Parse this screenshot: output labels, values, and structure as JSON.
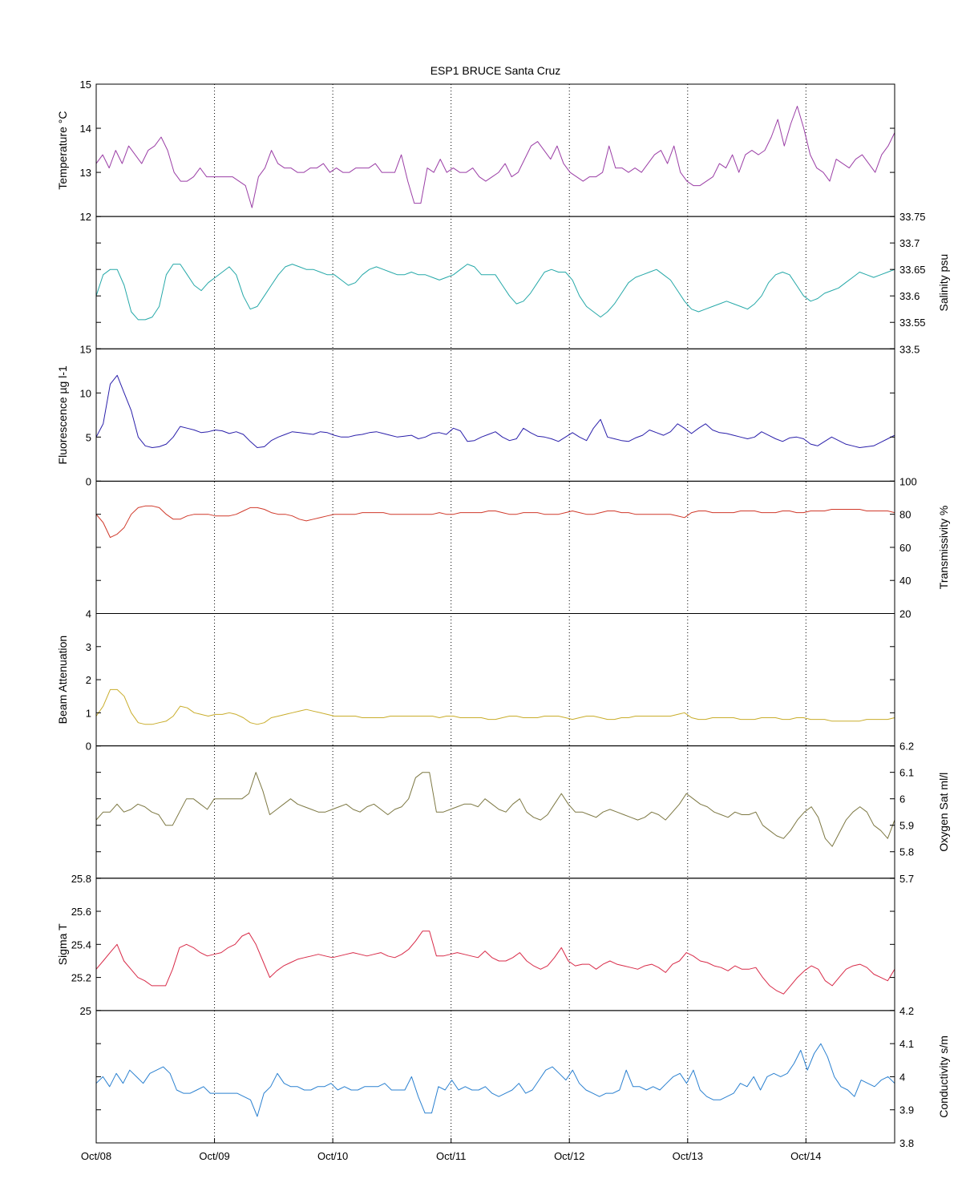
{
  "chart_data": {
    "type": "line",
    "title": "ESP1 BRUCE Santa Cruz",
    "x_axis": {
      "range": [
        "Oct/08",
        "Oct/14 18:00"
      ],
      "tick_labels": [
        "Oct/08",
        "Oct/09",
        "Oct/10",
        "Oct/11",
        "Oct/12",
        "Oct/13",
        "Oct/14"
      ],
      "grid": "dotted vertical at each day"
    },
    "panels": [
      {
        "name": "Temperature °C",
        "axis_side": "left",
        "ylim": [
          12,
          15
        ],
        "ticks": [
          12,
          13,
          14,
          15
        ],
        "color": "#9b3fa6",
        "values": [
          13.2,
          13.4,
          13.1,
          13.5,
          13.2,
          13.6,
          13.4,
          13.2,
          13.5,
          13.6,
          13.8,
          13.5,
          13.0,
          12.8,
          12.8,
          12.9,
          13.1,
          12.9,
          12.9,
          12.9,
          12.9,
          12.9,
          12.8,
          12.7,
          12.2,
          12.9,
          13.1,
          13.5,
          13.2,
          13.1,
          13.1,
          13.0,
          13.0,
          13.1,
          13.1,
          13.2,
          13.0,
          13.1,
          13.0,
          13.0,
          13.1,
          13.1,
          13.1,
          13.2,
          13.0,
          13.0,
          13.0,
          13.4,
          12.8,
          12.3,
          12.3,
          13.1,
          13.0,
          13.3,
          13.0,
          13.1,
          13.0,
          13.0,
          13.1,
          12.9,
          12.8,
          12.9,
          13.0,
          13.2,
          12.9,
          13.0,
          13.3,
          13.6,
          13.7,
          13.5,
          13.3,
          13.6,
          13.2,
          13.0,
          12.9,
          12.8,
          12.9,
          12.9,
          13.0,
          13.6,
          13.1,
          13.1,
          13.0,
          13.1,
          13.0,
          13.2,
          13.4,
          13.5,
          13.2,
          13.6,
          13.0,
          12.8,
          12.7,
          12.7,
          12.8,
          12.9,
          13.2,
          13.1,
          13.4,
          13.0,
          13.4,
          13.5,
          13.4,
          13.5,
          13.8,
          14.2,
          13.6,
          14.1,
          14.5,
          14.0,
          13.4,
          13.1,
          13.0,
          12.8,
          13.3,
          13.2,
          13.1,
          13.3,
          13.4,
          13.2,
          13.0,
          13.4,
          13.6,
          13.9
        ]
      },
      {
        "name": "Salinity psu",
        "axis_side": "right",
        "ylim": [
          33.5,
          33.75
        ],
        "ticks": [
          33.5,
          33.55,
          33.6,
          33.65,
          33.7,
          33.75
        ],
        "color": "#25a8a8",
        "values": [
          33.6,
          33.64,
          33.65,
          33.65,
          33.62,
          33.57,
          33.555,
          33.555,
          33.56,
          33.58,
          33.64,
          33.66,
          33.66,
          33.64,
          33.62,
          33.61,
          33.625,
          33.635,
          33.645,
          33.655,
          33.64,
          33.6,
          33.575,
          33.58,
          33.6,
          33.62,
          33.64,
          33.655,
          33.66,
          33.655,
          33.65,
          33.65,
          33.645,
          33.64,
          33.64,
          33.63,
          33.62,
          33.625,
          33.64,
          33.65,
          33.655,
          33.65,
          33.645,
          33.64,
          33.64,
          33.645,
          33.64,
          33.64,
          33.635,
          33.63,
          33.635,
          33.64,
          33.65,
          33.66,
          33.655,
          33.64,
          33.64,
          33.64,
          33.62,
          33.6,
          33.585,
          33.59,
          33.605,
          33.625,
          33.645,
          33.65,
          33.645,
          33.645,
          33.63,
          33.6,
          33.58,
          33.57,
          33.56,
          33.57,
          33.585,
          33.605,
          33.625,
          33.635,
          33.64,
          33.645,
          33.65,
          33.64,
          33.63,
          33.61,
          33.59,
          33.575,
          33.57,
          33.575,
          33.58,
          33.585,
          33.59,
          33.585,
          33.58,
          33.575,
          33.585,
          33.6,
          33.625,
          33.64,
          33.645,
          33.64,
          33.62,
          33.6,
          33.59,
          33.595,
          33.605,
          33.61,
          33.615,
          33.625,
          33.635,
          33.645,
          33.64,
          33.635,
          33.64,
          33.645,
          33.65
        ]
      },
      {
        "name": "Fluorescence µg l-1",
        "axis_side": "left",
        "ylim": [
          0,
          15
        ],
        "ticks": [
          0,
          5,
          10,
          15
        ],
        "color": "#2a1faa",
        "values": [
          5.0,
          6.5,
          11.0,
          12.0,
          10.0,
          8.0,
          5.0,
          4.0,
          3.8,
          3.9,
          4.2,
          5.0,
          6.2,
          6.0,
          5.8,
          5.5,
          5.6,
          5.8,
          5.7,
          5.4,
          5.6,
          5.3,
          4.5,
          3.8,
          3.9,
          4.6,
          5.0,
          5.3,
          5.6,
          5.5,
          5.4,
          5.3,
          5.6,
          5.5,
          5.2,
          5.0,
          5.0,
          5.2,
          5.3,
          5.5,
          5.6,
          5.4,
          5.2,
          5.0,
          5.1,
          5.2,
          4.8,
          5.0,
          5.4,
          5.5,
          5.3,
          6.0,
          5.7,
          4.5,
          4.6,
          5.0,
          5.3,
          5.6,
          5.0,
          4.6,
          4.8,
          6.0,
          5.5,
          5.1,
          5.0,
          4.8,
          4.5,
          5.0,
          5.5,
          5.0,
          4.6,
          6.0,
          7.0,
          5.0,
          4.8,
          4.6,
          4.5,
          4.9,
          5.2,
          5.8,
          5.5,
          5.2,
          5.6,
          6.5,
          6.0,
          5.4,
          6.0,
          6.5,
          5.8,
          5.5,
          5.4,
          5.2,
          5.0,
          4.8,
          5.0,
          5.6,
          5.2,
          4.8,
          4.5,
          4.9,
          5.0,
          4.8,
          4.2,
          4.0,
          4.5,
          5.0,
          4.6,
          4.2,
          4.0,
          3.8,
          3.9,
          4.0,
          4.4,
          4.8,
          5.2
        ]
      },
      {
        "name": "Transmissivity %",
        "axis_side": "right",
        "ylim": [
          20,
          100
        ],
        "ticks": [
          20,
          40,
          60,
          80,
          100
        ],
        "color": "#d0392a",
        "values": [
          80.0,
          75.0,
          66.0,
          68.0,
          72.0,
          80.0,
          84.0,
          85.0,
          85.0,
          84.0,
          80.0,
          77.0,
          77.0,
          79.0,
          80.0,
          80.0,
          80.0,
          79.0,
          79.0,
          79.0,
          80.0,
          82.0,
          84.0,
          84.0,
          83.0,
          81.0,
          80.0,
          80.0,
          79.0,
          77.0,
          76.0,
          77.0,
          78.0,
          79.0,
          80.0,
          80.0,
          80.0,
          80.0,
          81.0,
          81.0,
          81.0,
          81.0,
          80.0,
          80.0,
          80.0,
          80.0,
          80.0,
          80.0,
          80.0,
          81.0,
          80.0,
          80.0,
          81.0,
          81.0,
          81.0,
          81.0,
          82.0,
          82.0,
          81.0,
          80.0,
          80.0,
          81.0,
          81.0,
          81.0,
          80.0,
          80.0,
          80.0,
          81.0,
          82.0,
          81.0,
          80.0,
          80.0,
          81.0,
          82.0,
          82.0,
          81.0,
          81.0,
          80.0,
          80.0,
          80.0,
          80.0,
          80.0,
          80.0,
          79.0,
          78.0,
          81.0,
          82.0,
          82.0,
          81.0,
          81.0,
          81.0,
          81.0,
          82.0,
          82.0,
          82.0,
          81.0,
          81.0,
          81.0,
          82.0,
          82.0,
          81.0,
          81.0,
          82.0,
          82.0,
          82.0,
          83.0,
          83.0,
          83.0,
          83.0,
          83.0,
          82.0,
          82.0,
          82.0,
          82.0,
          81.0
        ]
      },
      {
        "name": "Beam Attenuation",
        "axis_side": "left",
        "ylim": [
          0,
          4
        ],
        "ticks": [
          0,
          1,
          2,
          3,
          4
        ],
        "color": "#c9ad2b",
        "values": [
          0.9,
          1.2,
          1.7,
          1.7,
          1.5,
          1.0,
          0.7,
          0.65,
          0.65,
          0.7,
          0.75,
          0.9,
          1.2,
          1.15,
          1.0,
          0.95,
          0.9,
          0.95,
          0.95,
          1.0,
          0.95,
          0.85,
          0.7,
          0.65,
          0.7,
          0.85,
          0.9,
          0.95,
          1.0,
          1.05,
          1.1,
          1.05,
          1.0,
          0.95,
          0.9,
          0.9,
          0.9,
          0.9,
          0.85,
          0.85,
          0.85,
          0.85,
          0.9,
          0.9,
          0.9,
          0.9,
          0.9,
          0.9,
          0.9,
          0.85,
          0.9,
          0.9,
          0.85,
          0.85,
          0.85,
          0.85,
          0.8,
          0.8,
          0.85,
          0.9,
          0.9,
          0.85,
          0.85,
          0.85,
          0.9,
          0.9,
          0.9,
          0.85,
          0.8,
          0.85,
          0.9,
          0.9,
          0.85,
          0.8,
          0.8,
          0.85,
          0.85,
          0.9,
          0.9,
          0.9,
          0.9,
          0.9,
          0.9,
          0.95,
          1.0,
          0.85,
          0.8,
          0.8,
          0.85,
          0.85,
          0.85,
          0.85,
          0.8,
          0.8,
          0.8,
          0.85,
          0.85,
          0.85,
          0.8,
          0.8,
          0.85,
          0.85,
          0.8,
          0.8,
          0.8,
          0.75,
          0.75,
          0.75,
          0.75,
          0.75,
          0.8,
          0.8,
          0.8,
          0.8,
          0.85
        ]
      },
      {
        "name": "Oxygen Sat ml/l",
        "axis_side": "right",
        "ylim": [
          5.7,
          6.2
        ],
        "ticks": [
          5.7,
          5.8,
          5.9,
          6.0,
          6.1,
          6.2
        ],
        "color": "#7d7843",
        "values": [
          5.92,
          5.95,
          5.95,
          5.98,
          5.95,
          5.96,
          5.98,
          5.97,
          5.95,
          5.94,
          5.9,
          5.9,
          5.95,
          6.0,
          6.0,
          5.98,
          5.96,
          6.0,
          6.0,
          6.0,
          6.0,
          6.0,
          6.02,
          6.1,
          6.03,
          5.94,
          5.96,
          5.98,
          6.0,
          5.98,
          5.97,
          5.96,
          5.95,
          5.95,
          5.96,
          5.97,
          5.98,
          5.96,
          5.95,
          5.97,
          5.98,
          5.96,
          5.94,
          5.96,
          5.97,
          6.0,
          6.08,
          6.1,
          6.1,
          5.95,
          5.95,
          5.96,
          5.97,
          5.98,
          5.98,
          5.97,
          6.0,
          5.98,
          5.96,
          5.95,
          5.98,
          6.0,
          5.95,
          5.93,
          5.92,
          5.94,
          5.98,
          6.02,
          5.98,
          5.95,
          5.95,
          5.94,
          5.93,
          5.95,
          5.96,
          5.95,
          5.94,
          5.93,
          5.92,
          5.93,
          5.95,
          5.94,
          5.92,
          5.95,
          5.98,
          6.02,
          6.0,
          5.98,
          5.97,
          5.95,
          5.94,
          5.93,
          5.95,
          5.94,
          5.94,
          5.95,
          5.9,
          5.88,
          5.86,
          5.85,
          5.88,
          5.92,
          5.95,
          5.97,
          5.93,
          5.85,
          5.82,
          5.87,
          5.92,
          5.95,
          5.97,
          5.95,
          5.9,
          5.88,
          5.85,
          5.92
        ]
      },
      {
        "name": "Sigma T",
        "axis_side": "left",
        "ylim": [
          25,
          25.8
        ],
        "ticks": [
          25,
          25.2,
          25.4,
          25.6,
          25.8
        ],
        "color": "#d82a48",
        "values": [
          25.25,
          25.3,
          25.35,
          25.4,
          25.3,
          25.25,
          25.2,
          25.18,
          25.15,
          25.15,
          25.15,
          25.25,
          25.38,
          25.4,
          25.38,
          25.35,
          25.33,
          25.34,
          25.35,
          25.38,
          25.4,
          25.45,
          25.47,
          25.4,
          25.3,
          25.2,
          25.24,
          25.27,
          25.29,
          25.31,
          25.32,
          25.33,
          25.34,
          25.33,
          25.32,
          25.33,
          25.34,
          25.35,
          25.34,
          25.33,
          25.34,
          25.35,
          25.33,
          25.32,
          25.34,
          25.37,
          25.42,
          25.48,
          25.48,
          25.33,
          25.33,
          25.34,
          25.35,
          25.34,
          25.33,
          25.32,
          25.36,
          25.32,
          25.3,
          25.3,
          25.32,
          25.35,
          25.3,
          25.27,
          25.25,
          25.27,
          25.32,
          25.38,
          25.3,
          25.27,
          25.28,
          25.28,
          25.25,
          25.28,
          25.3,
          25.28,
          25.27,
          25.26,
          25.25,
          25.27,
          25.28,
          25.26,
          25.23,
          25.28,
          25.3,
          25.35,
          25.33,
          25.3,
          25.29,
          25.27,
          25.26,
          25.24,
          25.27,
          25.25,
          25.25,
          25.26,
          25.2,
          25.15,
          25.12,
          25.1,
          25.15,
          25.2,
          25.24,
          25.27,
          25.25,
          25.18,
          25.15,
          25.2,
          25.25,
          25.27,
          25.28,
          25.26,
          25.22,
          25.2,
          25.18,
          25.25
        ]
      },
      {
        "name": "Conductivity s/m",
        "axis_side": "right",
        "ylim": [
          3.8,
          4.2
        ],
        "ticks": [
          3.8,
          3.9,
          4.0,
          4.1,
          4.2
        ],
        "color": "#2a80d0",
        "values": [
          3.98,
          4.0,
          3.97,
          4.01,
          3.98,
          4.02,
          4.0,
          3.98,
          4.01,
          4.02,
          4.03,
          4.01,
          3.96,
          3.95,
          3.95,
          3.96,
          3.97,
          3.95,
          3.95,
          3.95,
          3.95,
          3.95,
          3.94,
          3.93,
          3.88,
          3.95,
          3.97,
          4.01,
          3.98,
          3.97,
          3.97,
          3.96,
          3.96,
          3.97,
          3.97,
          3.98,
          3.96,
          3.97,
          3.96,
          3.96,
          3.97,
          3.97,
          3.97,
          3.98,
          3.96,
          3.96,
          3.96,
          4.0,
          3.94,
          3.89,
          3.89,
          3.97,
          3.96,
          3.99,
          3.96,
          3.97,
          3.96,
          3.96,
          3.97,
          3.95,
          3.94,
          3.95,
          3.96,
          3.98,
          3.95,
          3.96,
          3.99,
          4.02,
          4.03,
          4.01,
          3.99,
          4.02,
          3.98,
          3.96,
          3.95,
          3.94,
          3.95,
          3.95,
          3.96,
          4.02,
          3.97,
          3.97,
          3.96,
          3.97,
          3.96,
          3.98,
          4.0,
          4.01,
          3.98,
          4.02,
          3.96,
          3.94,
          3.93,
          3.93,
          3.94,
          3.95,
          3.98,
          3.97,
          4.0,
          3.96,
          4.0,
          4.01,
          4.0,
          4.01,
          4.04,
          4.08,
          4.02,
          4.07,
          4.1,
          4.06,
          4.0,
          3.97,
          3.96,
          3.94,
          3.99,
          3.98,
          3.97,
          3.99,
          4.0,
          3.98
        ]
      }
    ]
  }
}
